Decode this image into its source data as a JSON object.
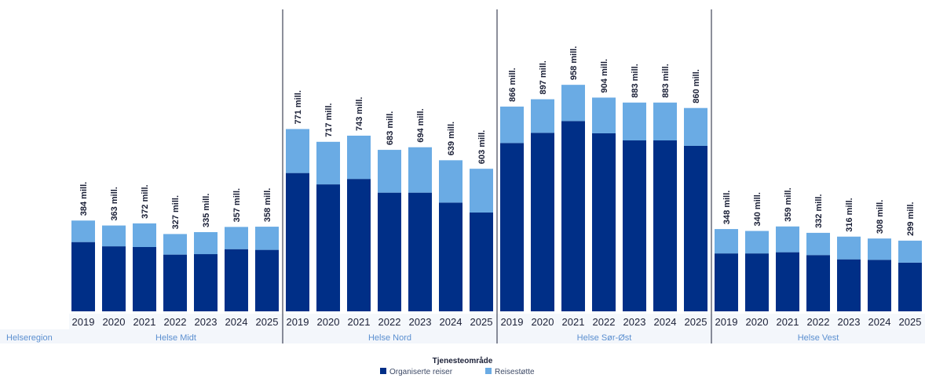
{
  "chart_data": {
    "type": "bar",
    "stacked": true,
    "region_axis_title": "Helseregion",
    "legend": {
      "title": "Tjenesteområde",
      "placement": "bottom-center"
    },
    "series": [
      {
        "name": "Organiserte reiser",
        "color": "#002f87"
      },
      {
        "name": "Reisestøtte",
        "color": "#6aabe4"
      }
    ],
    "ylim": [
      0,
      1000
    ],
    "groups": [
      {
        "region": "Helse Midt",
        "years": [
          "2019",
          "2020",
          "2021",
          "2022",
          "2023",
          "2024",
          "2025"
        ],
        "organiserte": [
          293,
          275,
          272,
          240,
          242,
          263,
          260
        ],
        "reisestotte": [
          91,
          88,
          100,
          87,
          93,
          94,
          98
        ],
        "labels": [
          "384 mill.",
          "363 mill.",
          "372 mill.",
          "327 mill.",
          "335 mill.",
          "357 mill.",
          "358 mill."
        ]
      },
      {
        "region": "Helse Nord",
        "years": [
          "2019",
          "2020",
          "2021",
          "2022",
          "2023",
          "2024",
          "2025"
        ],
        "organiserte": [
          585,
          537,
          560,
          502,
          502,
          460,
          418
        ],
        "reisestotte": [
          186,
          180,
          183,
          181,
          192,
          179,
          185
        ],
        "labels": [
          "771 mill.",
          "717 mill.",
          "743 mill.",
          "683 mill.",
          "694 mill.",
          "639 mill.",
          "603 mill."
        ]
      },
      {
        "region": "Helse Sør-Øst",
        "years": [
          "2019",
          "2020",
          "2021",
          "2022",
          "2023",
          "2024",
          "2025"
        ],
        "organiserte": [
          712,
          755,
          805,
          753,
          723,
          723,
          700
        ],
        "reisestotte": [
          154,
          142,
          153,
          151,
          160,
          160,
          160
        ],
        "labels": [
          "866 mill.",
          "897 mill.",
          "958 mill.",
          "904 mill.",
          "883 mill.",
          "883 mill.",
          "860 mill."
        ]
      },
      {
        "region": "Helse Vest",
        "years": [
          "2019",
          "2020",
          "2021",
          "2022",
          "2023",
          "2024",
          "2025"
        ],
        "organiserte": [
          245,
          245,
          250,
          238,
          220,
          218,
          206
        ],
        "reisestotte": [
          103,
          95,
          109,
          94,
          96,
          90,
          93
        ],
        "labels": [
          "348 mill.",
          "340 mill.",
          "359 mill.",
          "332 mill.",
          "316 mill.",
          "308 mill.",
          "299 mill."
        ]
      }
    ]
  }
}
